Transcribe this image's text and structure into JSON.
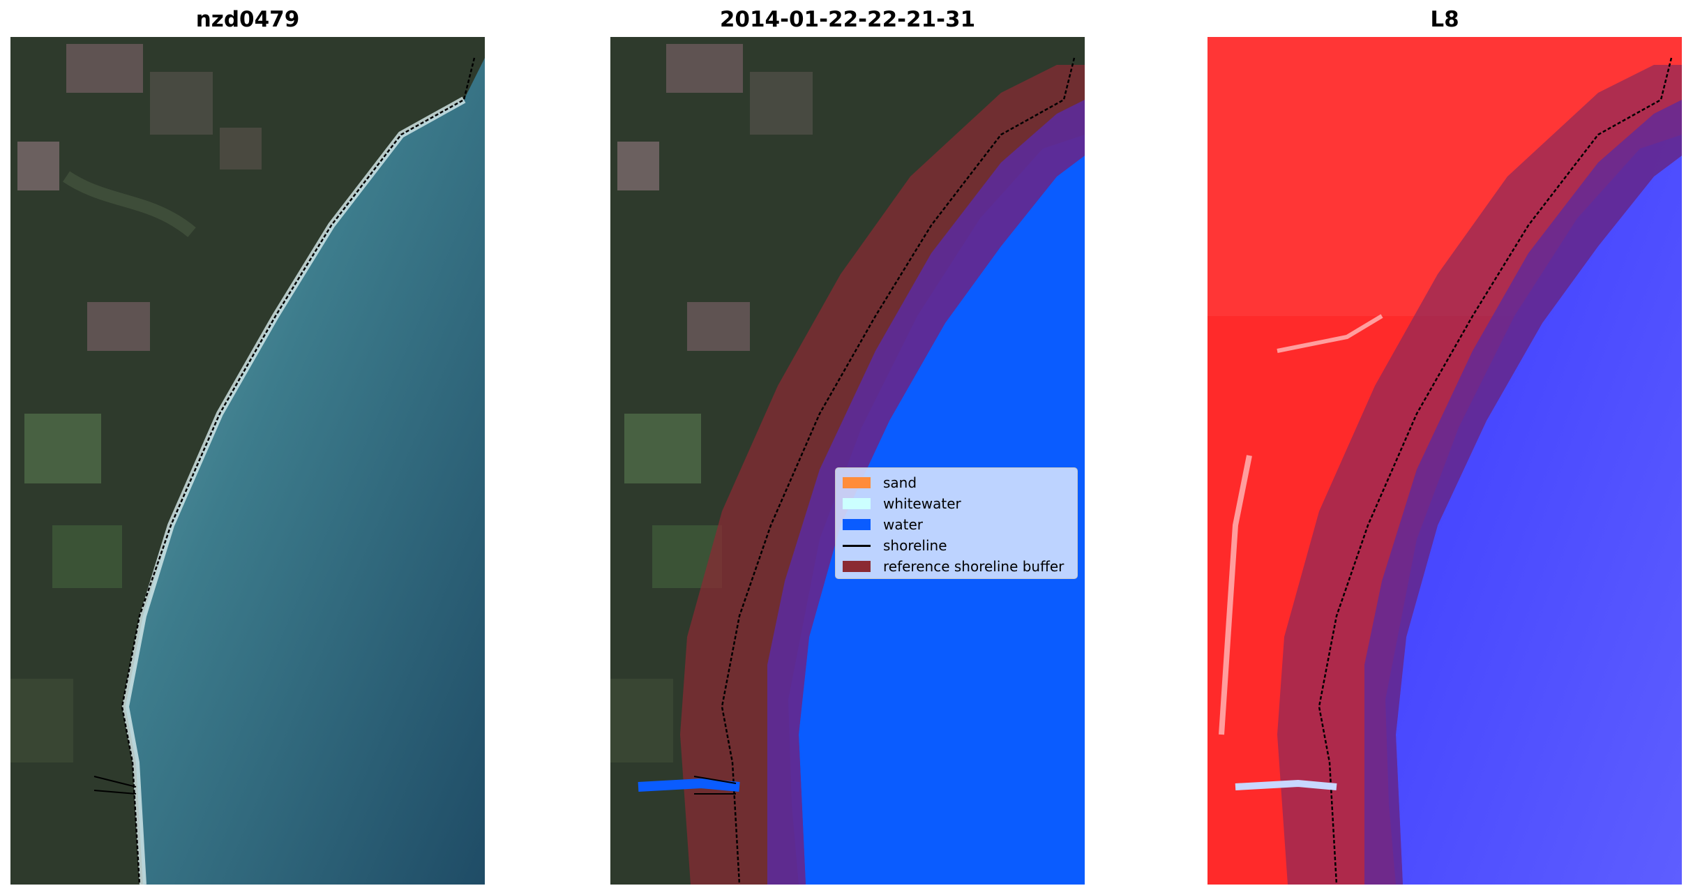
{
  "panels": [
    {
      "title": "nzd0479"
    },
    {
      "title": "2014-01-22-22-21-31"
    },
    {
      "title": "L8"
    }
  ],
  "legend": {
    "items": [
      {
        "label": "sand",
        "color": "#ff8c3a"
      },
      {
        "label": "whitewater",
        "color": "#ccffff"
      },
      {
        "label": "water",
        "color": "#0a5cff"
      },
      {
        "label": "shoreline",
        "color": "#000000"
      },
      {
        "label": "reference shoreline buffer",
        "color": "#8b2a33"
      }
    ]
  }
}
